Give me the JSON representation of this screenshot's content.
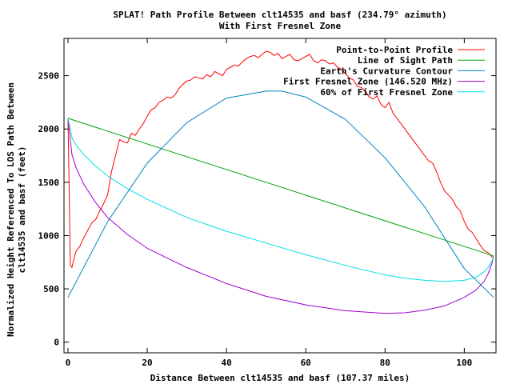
{
  "chart_data": {
    "type": "line",
    "title": "SPLAT! Path Profile Between clt14535 and basf (234.79° azimuth)",
    "subtitle": "With First Fresnel Zone",
    "xlabel": "Distance Between clt14535 and basf (107.37 miles)",
    "ylabel_line1": "Normalized Height Referenced To LOS Path Between",
    "ylabel_line2": "clt14535 and basf (feet)",
    "xlim": [
      -1,
      108
    ],
    "ylim": [
      -100,
      2850
    ],
    "x_ticks": [
      0,
      20,
      40,
      60,
      80,
      100
    ],
    "y_ticks": [
      0,
      500,
      1000,
      1500,
      2000,
      2500
    ],
    "grid": false,
    "legend_position": "top-right",
    "series": [
      {
        "name": "Point-to-Point Profile",
        "color": "#ff0000",
        "x": [
          0,
          0.3,
          0.6,
          1,
          1.5,
          2,
          3,
          4,
          5,
          6,
          7,
          8,
          9,
          10,
          11,
          12,
          13,
          14,
          15,
          16,
          17,
          18,
          19,
          20,
          21,
          22,
          23,
          24,
          25,
          26,
          27,
          28,
          29,
          30,
          31,
          32,
          33,
          34,
          35,
          36,
          37,
          38,
          39,
          40,
          41,
          42,
          43,
          44,
          45,
          46,
          47,
          48,
          49,
          50,
          51,
          52,
          53,
          54,
          55,
          56,
          57,
          58,
          59,
          60,
          61,
          62,
          63,
          64,
          65,
          66,
          67,
          68,
          69,
          70,
          71,
          72,
          73,
          74,
          75,
          76,
          77,
          78,
          79,
          80,
          81,
          82,
          83,
          84,
          85,
          86,
          87,
          88,
          89,
          90,
          91,
          92,
          93,
          94,
          95,
          96,
          97,
          98,
          99,
          100,
          101,
          102,
          103,
          104,
          105,
          106,
          107,
          107.37
        ],
        "y": [
          2100,
          1450,
          720,
          700,
          780,
          850,
          900,
          980,
          1050,
          1120,
          1150,
          1230,
          1300,
          1380,
          1600,
          1750,
          1900,
          1880,
          1870,
          1960,
          1940,
          2000,
          2050,
          2120,
          2180,
          2200,
          2250,
          2270,
          2300,
          2290,
          2320,
          2380,
          2420,
          2450,
          2460,
          2490,
          2480,
          2470,
          2510,
          2490,
          2540,
          2520,
          2500,
          2560,
          2580,
          2600,
          2590,
          2630,
          2660,
          2680,
          2690,
          2670,
          2700,
          2730,
          2720,
          2690,
          2710,
          2660,
          2680,
          2700,
          2650,
          2640,
          2660,
          2680,
          2700,
          2640,
          2620,
          2650,
          2640,
          2610,
          2620,
          2580,
          2560,
          2520,
          2480,
          2460,
          2400,
          2390,
          2360,
          2300,
          2280,
          2310,
          2230,
          2200,
          2250,
          2150,
          2100,
          2050,
          2000,
          1950,
          1900,
          1850,
          1800,
          1750,
          1700,
          1680,
          1600,
          1500,
          1420,
          1380,
          1340,
          1270,
          1230,
          1130,
          1060,
          1030,
          970,
          910,
          860,
          840,
          800,
          790
        ]
      },
      {
        "name": "Line of Sight Path",
        "color": "#00a000",
        "x": [
          0,
          107.37
        ],
        "y": [
          2100,
          810
        ]
      },
      {
        "name": "Earth's Curvature Contour",
        "color": "#0080c0",
        "x": [
          0,
          10,
          20,
          30,
          40,
          50,
          54,
          60,
          70,
          80,
          90,
          100,
          107.37
        ],
        "y": [
          420,
          1130,
          1680,
          2060,
          2290,
          2355,
          2355,
          2300,
          2090,
          1730,
          1270,
          690,
          420
        ]
      },
      {
        "name": "First Fresnel Zone (146.520 MHz)",
        "color": "#a000d0",
        "x": [
          0,
          1,
          2,
          4,
          7,
          10,
          15,
          20,
          30,
          40,
          50,
          60,
          70,
          80,
          85,
          90,
          95,
          100,
          103,
          105,
          106,
          107,
          107.37
        ],
        "y": [
          2100,
          1760,
          1640,
          1480,
          1310,
          1170,
          1010,
          880,
          700,
          550,
          430,
          350,
          295,
          270,
          275,
          300,
          340,
          420,
          490,
          570,
          640,
          740,
          810
        ]
      },
      {
        "name": "60% of First Fresnel Zone",
        "color": "#00e0e0",
        "x": [
          0,
          1,
          2,
          4,
          7,
          10,
          15,
          20,
          30,
          40,
          50,
          60,
          70,
          80,
          85,
          90,
          95,
          100,
          103,
          105,
          106,
          107,
          107.37
        ],
        "y": [
          2100,
          1920,
          1850,
          1760,
          1650,
          1560,
          1440,
          1340,
          1170,
          1040,
          930,
          820,
          720,
          630,
          600,
          580,
          570,
          580,
          610,
          660,
          700,
          760,
          810
        ]
      }
    ]
  }
}
